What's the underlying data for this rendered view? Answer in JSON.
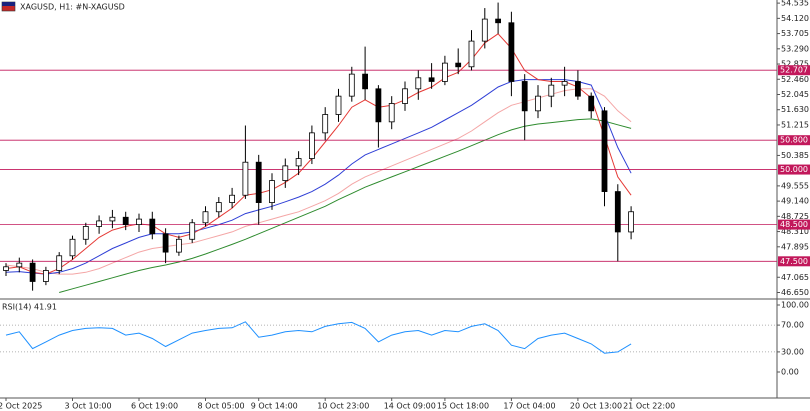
{
  "chart_data": [
    {
      "type": "candlestick",
      "title": "XAGUSD, H1:  #N-XAGUSD",
      "categories": [
        "2 Oct 2025",
        null,
        null,
        null,
        null,
        "3 Oct 10:00",
        null,
        null,
        null,
        null,
        "6 Oct 19:00",
        null,
        null,
        null,
        null,
        "8 Oct 05:00",
        null,
        null,
        null,
        "9 Oct 14:00",
        null,
        null,
        null,
        null,
        "10 Oct 23:00",
        null,
        null,
        null,
        null,
        "14 Oct 09:00",
        null,
        null,
        null,
        "15 Oct 18:00",
        null,
        null,
        null,
        null,
        "17 Oct 04:00",
        null,
        null,
        null,
        null,
        "20 Oct 13:00",
        null,
        null,
        null,
        "21 Oct 22:00"
      ],
      "open": [
        47.25,
        47.35,
        47.45,
        46.95,
        47.25,
        47.65,
        48.1,
        48.45,
        48.6,
        48.7,
        48.5,
        48.65,
        48.25,
        47.75,
        48.1,
        48.55,
        48.85,
        49.1,
        49.3,
        50.2,
        49.1,
        49.7,
        50.1,
        50.3,
        51.0,
        51.5,
        52.0,
        52.6,
        52.2,
        51.3,
        51.8,
        52.2,
        52.5,
        52.4,
        52.9,
        52.8,
        53.5,
        54.1,
        54.0,
        52.4,
        51.6,
        52.0,
        52.3,
        52.4,
        52.0,
        51.6,
        49.4,
        48.3
      ],
      "high": [
        47.45,
        47.6,
        47.55,
        47.35,
        47.75,
        48.2,
        48.55,
        48.75,
        48.9,
        48.85,
        48.8,
        48.85,
        48.4,
        48.2,
        48.65,
        49.0,
        49.25,
        49.5,
        51.2,
        50.4,
        49.9,
        50.3,
        50.5,
        51.2,
        51.7,
        52.2,
        52.8,
        53.35,
        52.3,
        52.0,
        52.4,
        52.7,
        52.9,
        53.1,
        53.3,
        53.8,
        54.4,
        54.55,
        54.3,
        52.6,
        52.3,
        52.5,
        52.8,
        52.7,
        52.1,
        51.7,
        49.6,
        49.0
      ],
      "low": [
        47.1,
        47.2,
        46.7,
        46.85,
        47.15,
        47.55,
        47.95,
        48.25,
        48.4,
        48.35,
        48.3,
        48.1,
        47.45,
        47.65,
        48.0,
        48.45,
        48.7,
        48.95,
        49.2,
        48.5,
        48.9,
        49.5,
        49.85,
        50.15,
        50.8,
        51.3,
        51.85,
        51.9,
        50.6,
        51.1,
        51.6,
        51.9,
        52.2,
        52.3,
        52.6,
        52.7,
        53.3,
        53.7,
        52.0,
        50.8,
        51.4,
        51.7,
        52.0,
        51.9,
        51.4,
        49.0,
        47.5,
        48.1
      ],
      "close": [
        47.35,
        47.45,
        46.95,
        47.25,
        47.65,
        48.1,
        48.45,
        48.6,
        48.7,
        48.5,
        48.65,
        48.25,
        47.75,
        48.1,
        48.55,
        48.85,
        49.1,
        49.3,
        50.2,
        49.1,
        49.7,
        50.1,
        50.3,
        51.0,
        51.5,
        52.0,
        52.6,
        52.2,
        51.3,
        51.8,
        52.2,
        52.5,
        52.4,
        52.9,
        52.8,
        53.5,
        54.1,
        54.0,
        52.4,
        51.6,
        52.0,
        52.3,
        52.4,
        52.0,
        51.6,
        49.4,
        48.3,
        48.85
      ],
      "color": "#000000",
      "series": [
        {
          "color": "#2e8b2e",
          "values": [
            null,
            null,
            null,
            null,
            46.65,
            46.75,
            46.85,
            46.95,
            47.05,
            47.15,
            47.25,
            47.33,
            47.4,
            47.48,
            47.58,
            47.7,
            47.83,
            47.96,
            48.1,
            48.25,
            48.4,
            48.55,
            48.7,
            48.85,
            49.0,
            49.18,
            49.35,
            49.52,
            49.66,
            49.8,
            49.94,
            50.08,
            50.22,
            50.36,
            50.5,
            50.65,
            50.8,
            50.95,
            51.08,
            51.18,
            51.24,
            51.28,
            51.32,
            51.36,
            51.38,
            51.32,
            51.22,
            51.12
          ]
        },
        {
          "color": "#f4a6a6",
          "values": [
            47.4,
            47.35,
            47.3,
            47.2,
            47.15,
            47.15,
            47.2,
            47.3,
            47.45,
            47.6,
            47.75,
            47.85,
            47.9,
            47.95,
            48.0,
            48.1,
            48.2,
            48.3,
            48.45,
            48.55,
            48.65,
            48.75,
            48.85,
            49.0,
            49.15,
            49.35,
            49.6,
            49.8,
            49.95,
            50.1,
            50.25,
            50.4,
            50.55,
            50.7,
            50.85,
            51.05,
            51.3,
            51.55,
            51.75,
            51.85,
            51.95,
            52.05,
            52.15,
            52.2,
            52.2,
            52.0,
            51.6,
            51.3
          ]
        },
        {
          "color": "#2f3fd6",
          "values": [
            47.2,
            47.22,
            47.18,
            47.15,
            47.2,
            47.3,
            47.45,
            47.65,
            47.85,
            48.0,
            48.15,
            48.25,
            48.25,
            48.25,
            48.3,
            48.4,
            48.5,
            48.62,
            48.8,
            48.9,
            49.0,
            49.12,
            49.25,
            49.4,
            49.6,
            49.85,
            50.15,
            50.4,
            50.55,
            50.7,
            50.85,
            51.0,
            51.15,
            51.35,
            51.55,
            51.75,
            52.0,
            52.25,
            52.4,
            52.45,
            52.45,
            52.45,
            52.45,
            52.4,
            52.3,
            51.5,
            50.6,
            49.9
          ]
        },
        {
          "color": "#e53935",
          "values": [
            47.3,
            47.35,
            47.2,
            47.15,
            47.3,
            47.55,
            47.85,
            48.15,
            48.35,
            48.45,
            48.52,
            48.48,
            48.25,
            48.15,
            48.25,
            48.45,
            48.7,
            48.95,
            49.3,
            49.35,
            49.45,
            49.65,
            49.9,
            50.3,
            50.75,
            51.2,
            51.7,
            51.9,
            51.7,
            51.75,
            51.9,
            52.1,
            52.25,
            52.5,
            52.65,
            53.0,
            53.45,
            53.7,
            53.3,
            52.7,
            52.45,
            52.4,
            52.4,
            52.25,
            51.95,
            50.9,
            49.8,
            49.3
          ]
        }
      ],
      "levels": [
        {
          "value": 52.707,
          "label": "52.707"
        },
        {
          "value": 50.8,
          "label": "50.800"
        },
        {
          "value": 50,
          "label": "50.000"
        },
        {
          "value": 48.5,
          "label": "48.500"
        },
        {
          "value": 47.5,
          "label": "47.500"
        }
      ],
      "level_color": "#c2185b",
      "ylim": [
        46.5,
        54.62
      ],
      "yticks": [
        54.535,
        {
          "value": 54.12,
          "label": "54.120"
        },
        53.705,
        {
          "value": 53.29,
          "label": "53.290"
        },
        52.875,
        {
          "value": 52.46,
          "label": "52.460"
        },
        52.045,
        {
          "value": 51.63,
          "label": "51.630"
        },
        51.215,
        50.385,
        49.555,
        {
          "value": 49.14,
          "label": "49.140"
        },
        48.725,
        {
          "value": 48.31,
          "label": "48.310"
        },
        47.895,
        47.065,
        {
          "value": 46.65,
          "label": "46.650"
        }
      ]
    },
    {
      "type": "line",
      "title": "RSI(14)",
      "color": "#1e90ff",
      "values": [
        55,
        60,
        35,
        45,
        55,
        62,
        65,
        66,
        65,
        55,
        58,
        50,
        38,
        48,
        58,
        62,
        65,
        66,
        75,
        52,
        55,
        60,
        62,
        60,
        68,
        72,
        74,
        65,
        45,
        55,
        60,
        62,
        55,
        62,
        60,
        68,
        72,
        62,
        40,
        35,
        50,
        55,
        58,
        50,
        42,
        28,
        30,
        41.91
      ],
      "ylim": [
        0,
        100
      ],
      "yticks": [
        {
          "value": 100,
          "label": "100.00"
        },
        {
          "value": 70,
          "label": "70.00"
        },
        {
          "value": 30,
          "label": "30.00"
        },
        {
          "value": 0,
          "label": "0.00"
        }
      ]
    }
  ]
}
